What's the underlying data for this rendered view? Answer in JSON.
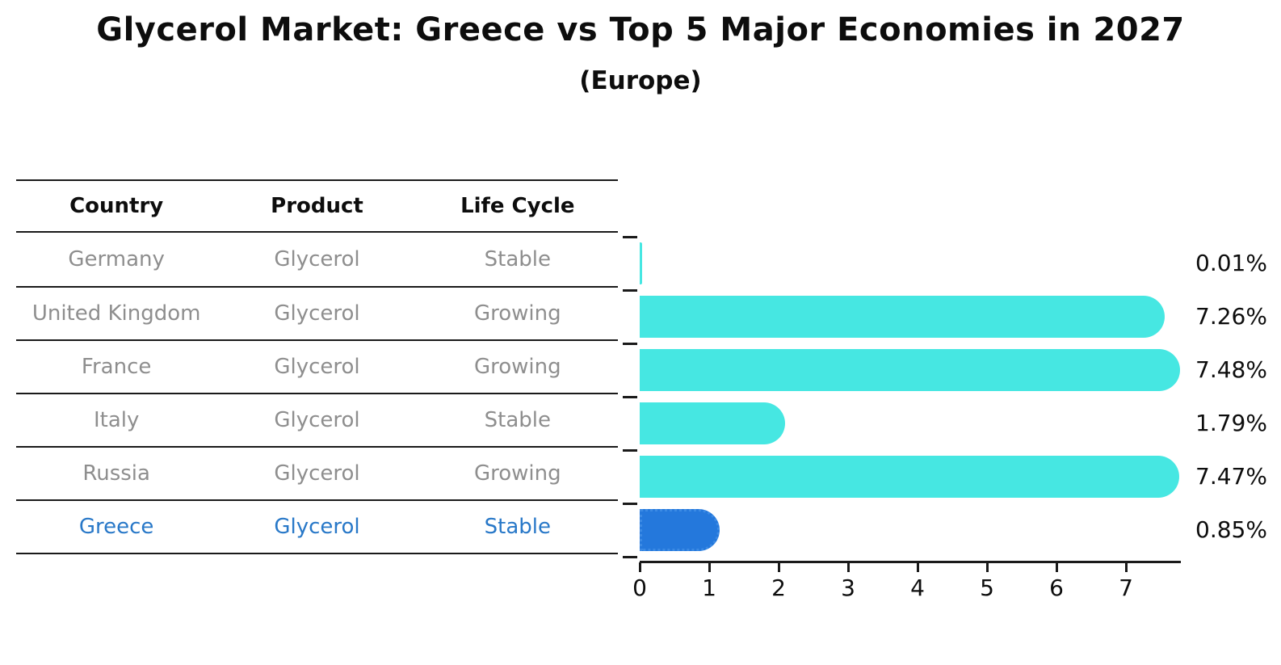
{
  "title": "Glycerol Market: Greece vs Top 5 Major Economies in 2027",
  "subtitle": "(Europe)",
  "table": {
    "headers": [
      "Country",
      "Product",
      "Life Cycle"
    ],
    "rows": [
      {
        "country": "Germany",
        "product": "Glycerol",
        "life_cycle": "Stable",
        "highlight": false
      },
      {
        "country": "United Kingdom",
        "product": "Glycerol",
        "life_cycle": "Growing",
        "highlight": false
      },
      {
        "country": "France",
        "product": "Glycerol",
        "life_cycle": "Growing",
        "highlight": false
      },
      {
        "country": "Italy",
        "product": "Glycerol",
        "life_cycle": "Stable",
        "highlight": false
      },
      {
        "country": "Russia",
        "product": "Glycerol",
        "life_cycle": "Growing",
        "highlight": false
      },
      {
        "country": "Greece",
        "product": "Glycerol",
        "life_cycle": "Stable",
        "highlight": true
      }
    ]
  },
  "chart_data": {
    "type": "bar",
    "orientation": "horizontal",
    "title": "Glycerol Market: Greece vs Top 5 Major Economies in 2027",
    "subtitle": "(Europe)",
    "categories": [
      "Germany",
      "United Kingdom",
      "France",
      "Italy",
      "Russia",
      "Greece"
    ],
    "values": [
      0.01,
      7.26,
      7.48,
      1.79,
      7.47,
      0.85
    ],
    "value_labels": [
      "0.01%",
      "7.26%",
      "7.48%",
      "1.79%",
      "7.47%",
      "0.85%"
    ],
    "x_ticks": [
      0,
      1,
      2,
      3,
      4,
      5,
      6,
      7
    ],
    "xlim": [
      0,
      7.79
    ],
    "grid": false,
    "legend": false,
    "bar_color": "#46e7e2",
    "highlight_color": "#2478dc",
    "highlight_index": 5
  },
  "colors": {
    "text_primary": "#0d0d0d",
    "text_muted": "#8e8e8e",
    "highlight_text": "#2878c8",
    "line": "#1a1a1a"
  }
}
